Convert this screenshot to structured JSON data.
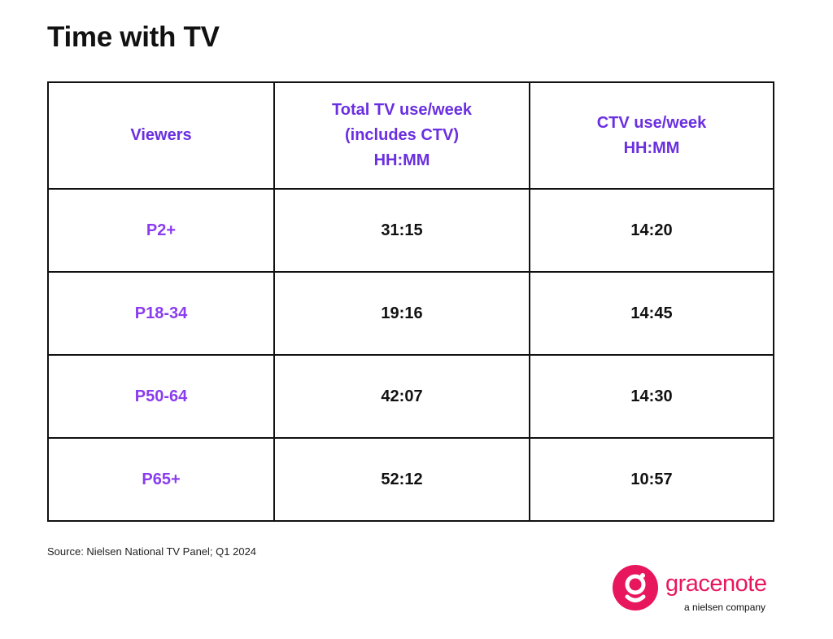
{
  "title": "Time with TV",
  "columns": [
    [
      "Viewers"
    ],
    [
      "Total TV use/week",
      "(includes CTV)",
      "HH:MM"
    ],
    [
      "CTV use/week",
      "HH:MM"
    ]
  ],
  "rows": [
    {
      "viewers": "P2+",
      "total": "31:15",
      "ctv": "14:20"
    },
    {
      "viewers": "P18-34",
      "total": "19:16",
      "ctv": "14:45"
    },
    {
      "viewers": "P50-64",
      "total": "42:07",
      "ctv": "14:30"
    },
    {
      "viewers": "P65+",
      "total": "52:12",
      "ctv": "10:57"
    }
  ],
  "source": "Source: Nielsen National TV Panel; Q1 2024",
  "logo": {
    "wordmark": "gracenote",
    "tagline": "a nielsen company",
    "color": "#e8175d"
  },
  "colors": {
    "header_text": "#6a2fe0",
    "row_label_text": "#8a3cf0",
    "border": "#111111"
  },
  "chart_data": {
    "type": "table",
    "title": "Time with TV",
    "columns": [
      "Viewers",
      "Total TV use/week (includes CTV) HH:MM",
      "CTV use/week HH:MM"
    ],
    "rows": [
      [
        "P2+",
        "31:15",
        "14:20"
      ],
      [
        "P18-34",
        "19:16",
        "14:45"
      ],
      [
        "P50-64",
        "42:07",
        "14:30"
      ],
      [
        "P65+",
        "52:12",
        "10:57"
      ]
    ]
  }
}
